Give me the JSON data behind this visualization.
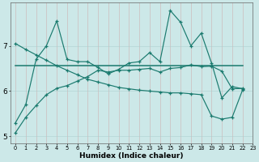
{
  "title": "",
  "xlabel": "Humidex (Indice chaleur)",
  "ylabel": "",
  "bg_color": "#cce8e8",
  "line_color": "#1a7a6e",
  "grid_color": "#aacccc",
  "xlim": [
    -0.5,
    23
  ],
  "ylim": [
    4.85,
    7.95
  ],
  "yticks": [
    5,
    6,
    7
  ],
  "xticks": [
    0,
    1,
    2,
    3,
    4,
    5,
    6,
    7,
    8,
    9,
    10,
    11,
    12,
    13,
    14,
    15,
    16,
    17,
    18,
    19,
    20,
    21,
    22,
    23
  ],
  "series1_x": [
    0,
    1,
    2,
    3,
    4,
    5,
    6,
    7,
    8,
    9,
    10,
    11,
    12,
    13,
    14,
    15,
    16,
    17,
    18,
    19,
    20,
    21,
    22
  ],
  "series1_y": [
    5.3,
    5.7,
    6.7,
    7.0,
    7.55,
    6.7,
    6.65,
    6.65,
    6.52,
    6.38,
    6.48,
    6.62,
    6.65,
    6.85,
    6.65,
    7.78,
    7.52,
    7.0,
    7.28,
    6.62,
    5.85,
    6.1,
    6.05
  ],
  "series2_x": [
    0,
    22
  ],
  "series2_y": [
    6.56,
    6.56
  ],
  "series3_x": [
    0,
    1,
    2,
    3,
    4,
    5,
    6,
    7,
    8,
    9,
    10,
    11,
    12,
    13,
    14,
    15,
    16,
    17,
    18,
    19,
    20,
    21,
    22
  ],
  "series3_y": [
    5.08,
    5.42,
    5.68,
    5.92,
    6.06,
    6.12,
    6.22,
    6.32,
    6.46,
    6.42,
    6.46,
    6.46,
    6.48,
    6.5,
    6.42,
    6.5,
    6.52,
    6.58,
    6.54,
    6.55,
    6.44,
    6.05,
    6.06
  ],
  "series4_x": [
    0,
    1,
    2,
    3,
    4,
    5,
    6,
    7,
    8,
    9,
    10,
    11,
    12,
    13,
    14,
    15,
    16,
    17,
    18,
    19,
    20,
    21,
    22
  ],
  "series4_y": [
    7.05,
    6.92,
    6.8,
    6.68,
    6.56,
    6.46,
    6.36,
    6.26,
    6.2,
    6.14,
    6.08,
    6.05,
    6.02,
    6.0,
    5.98,
    5.96,
    5.96,
    5.94,
    5.92,
    5.45,
    5.38,
    5.42,
    6.02
  ]
}
